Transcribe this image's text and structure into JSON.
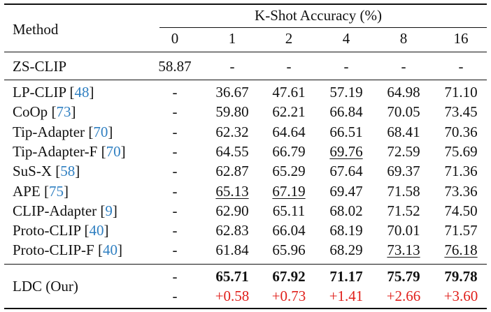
{
  "header": {
    "method": "Method",
    "group": "K-Shot Accuracy (%)",
    "shots": [
      "0",
      "1",
      "2",
      "4",
      "8",
      "16"
    ]
  },
  "zs_row": {
    "name": "ZS-CLIP",
    "values": [
      "58.87",
      "-",
      "-",
      "-",
      "-",
      "-"
    ]
  },
  "rows": [
    {
      "name": "LP-CLIP",
      "cite": "48",
      "values": [
        "-",
        "36.67",
        "47.61",
        "57.19",
        "64.98",
        "71.10"
      ],
      "underline": []
    },
    {
      "name": "CoOp",
      "cite": "73",
      "values": [
        "-",
        "59.80",
        "62.21",
        "66.84",
        "70.05",
        "73.45"
      ],
      "underline": []
    },
    {
      "name": "Tip-Adapter",
      "cite": "70",
      "values": [
        "-",
        "62.32",
        "64.64",
        "66.51",
        "68.41",
        "70.36"
      ],
      "underline": []
    },
    {
      "name": "Tip-Adapter-F",
      "cite": "70",
      "values": [
        "-",
        "64.55",
        "66.79",
        "69.76",
        "72.59",
        "75.69"
      ],
      "underline": [
        3
      ]
    },
    {
      "name": "SuS-X",
      "cite": "58",
      "values": [
        "-",
        "62.87",
        "65.29",
        "67.64",
        "69.37",
        "71.36"
      ],
      "underline": []
    },
    {
      "name": "APE",
      "cite": "75",
      "values": [
        "-",
        "65.13",
        "67.19",
        "69.47",
        "71.58",
        "73.36"
      ],
      "underline": [
        1,
        2
      ]
    },
    {
      "name": "CLIP-Adapter",
      "cite": "9",
      "values": [
        "-",
        "62.90",
        "65.11",
        "68.02",
        "71.52",
        "74.50"
      ],
      "underline": []
    },
    {
      "name": "Proto-CLIP",
      "cite": "40",
      "values": [
        "-",
        "62.83",
        "66.04",
        "68.19",
        "70.01",
        "71.57"
      ],
      "underline": []
    },
    {
      "name": "Proto-CLIP-F",
      "cite": "40",
      "values": [
        "-",
        "61.84",
        "65.96",
        "68.29",
        "73.13",
        "76.18"
      ],
      "underline": [
        4,
        5
      ]
    }
  ],
  "ours": {
    "name": "LDC (Our)",
    "values": [
      "-",
      "65.71",
      "67.92",
      "71.17",
      "75.79",
      "79.78"
    ],
    "gains": [
      "-",
      "+0.58",
      "+0.73",
      "+1.41",
      "+2.66",
      "+3.60"
    ],
    "gain_color": "#e0201b",
    "cite_color": "#2f7fc1"
  }
}
